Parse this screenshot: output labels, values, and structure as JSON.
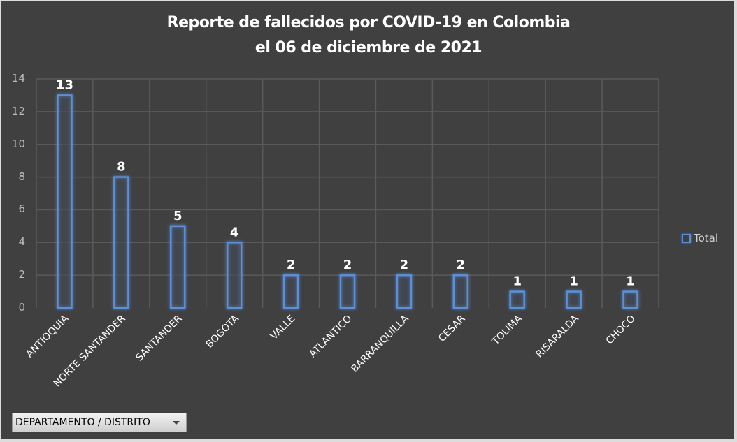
{
  "chart_data": {
    "type": "bar",
    "title": "Reporte de fallecidos por COVID-19 en Colombia",
    "subtitle": "el 06 de diciembre de 2021",
    "categories": [
      "ANTIOQUIA",
      "NORTE SANTANDER",
      "SANTANDER",
      "BOGOTA",
      "VALLE",
      "ATLANTICO",
      "BARRANQUILLA",
      "CESAR",
      "TOLIMA",
      "RISARALDA",
      "CHOCO"
    ],
    "series": [
      {
        "name": "Total",
        "values": [
          13,
          8,
          5,
          4,
          2,
          2,
          2,
          2,
          1,
          1,
          1
        ],
        "color": "#5b8fd6"
      }
    ],
    "xlabel": "",
    "ylabel": "",
    "ylim": [
      0,
      14
    ],
    "yticks": [
      "0",
      "2",
      "4",
      "6",
      "8",
      "10",
      "12",
      "14"
    ],
    "grid": true,
    "data_labels": true,
    "legend_position": "right"
  },
  "legend": {
    "label": "Total"
  },
  "filter": {
    "label": "DEPARTAMENTO / DISTRITO",
    "icon": "chevron-down-icon"
  },
  "colors": {
    "background": "#404040",
    "bar": "#5b8fd6",
    "grid": "#5a5a5a",
    "text": "#ffffff"
  }
}
